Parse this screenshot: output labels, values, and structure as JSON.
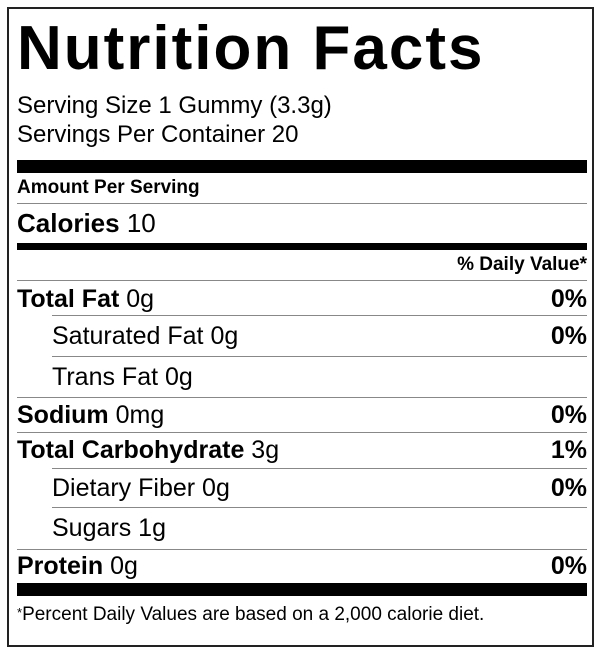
{
  "title": "Nutrition Facts",
  "serving_size": "Serving Size 1 Gummy (3.3g)",
  "servings_per_container": "Servings Per Container 20",
  "amount_per_serving": "Amount Per Serving",
  "calories": {
    "label": "Calories",
    "value": "10"
  },
  "daily_value_header": "% Daily Value*",
  "nutrients": [
    {
      "label": "Total Fat",
      "amount": "0g",
      "dv": "0%"
    },
    {
      "label": "Saturated Fat",
      "amount": "0g",
      "dv": "0%"
    },
    {
      "label": "Trans Fat",
      "amount": "0g",
      "dv": ""
    },
    {
      "label": "Sodium",
      "amount": "0mg",
      "dv": "0%"
    },
    {
      "label": "Total Carbohydrate",
      "amount": "3g",
      "dv": "1%"
    },
    {
      "label": "Dietary Fiber",
      "amount": "0g",
      "dv": "0%"
    },
    {
      "label": "Sugars",
      "amount": "1g",
      "dv": ""
    },
    {
      "label": "Protein",
      "amount": "0g",
      "dv": "0%"
    }
  ],
  "footnote_marker": "*",
  "footnote": "Percent Daily Values are based on a 2,000 calorie diet."
}
